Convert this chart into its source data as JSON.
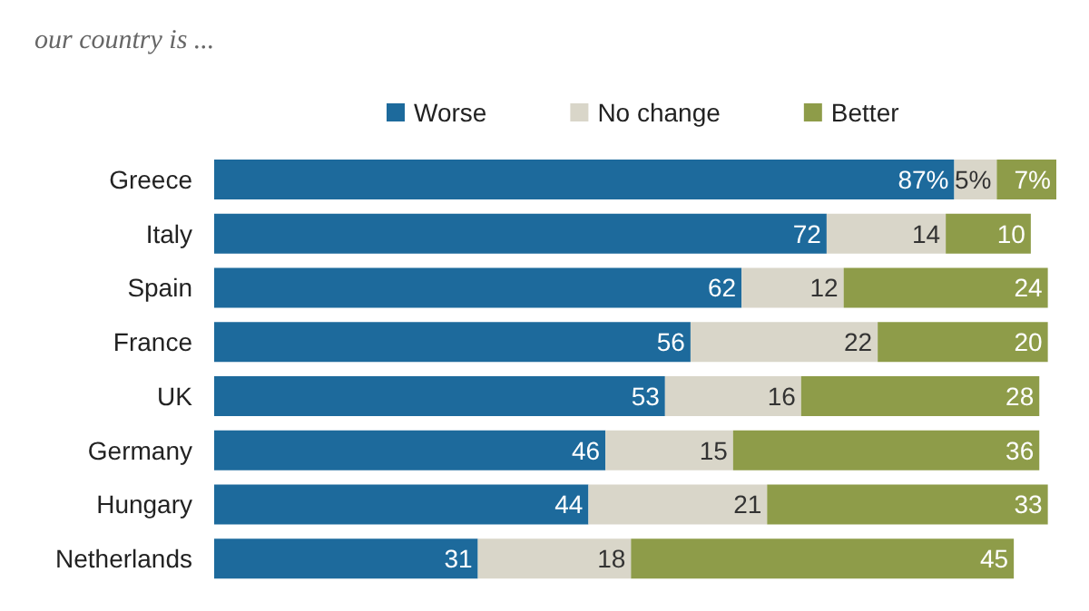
{
  "chart_data": {
    "type": "bar",
    "orientation": "horizontal",
    "stacked": true,
    "title": "our country is ...",
    "categories": [
      "Greece",
      "Italy",
      "Spain",
      "France",
      "UK",
      "Germany",
      "Hungary",
      "Netherlands"
    ],
    "series": [
      {
        "name": "Worse",
        "color": "#1d6a9c",
        "values": [
          87,
          72,
          62,
          56,
          53,
          46,
          44,
          31
        ],
        "value_labels": [
          "87%",
          "72",
          "62",
          "56",
          "53",
          "46",
          "44",
          "31"
        ]
      },
      {
        "name": "No change",
        "color": "#d9d6c9",
        "values": [
          5,
          14,
          12,
          22,
          16,
          15,
          21,
          18
        ],
        "value_labels": [
          "5%",
          "14",
          "12",
          "22",
          "16",
          "15",
          "21",
          "18"
        ]
      },
      {
        "name": "Better",
        "color": "#8e9c49",
        "values": [
          7,
          10,
          24,
          20,
          28,
          36,
          33,
          45
        ],
        "value_labels": [
          "7%",
          "10",
          "24",
          "20",
          "28",
          "36",
          "33",
          "45"
        ]
      }
    ],
    "legend": "top"
  }
}
